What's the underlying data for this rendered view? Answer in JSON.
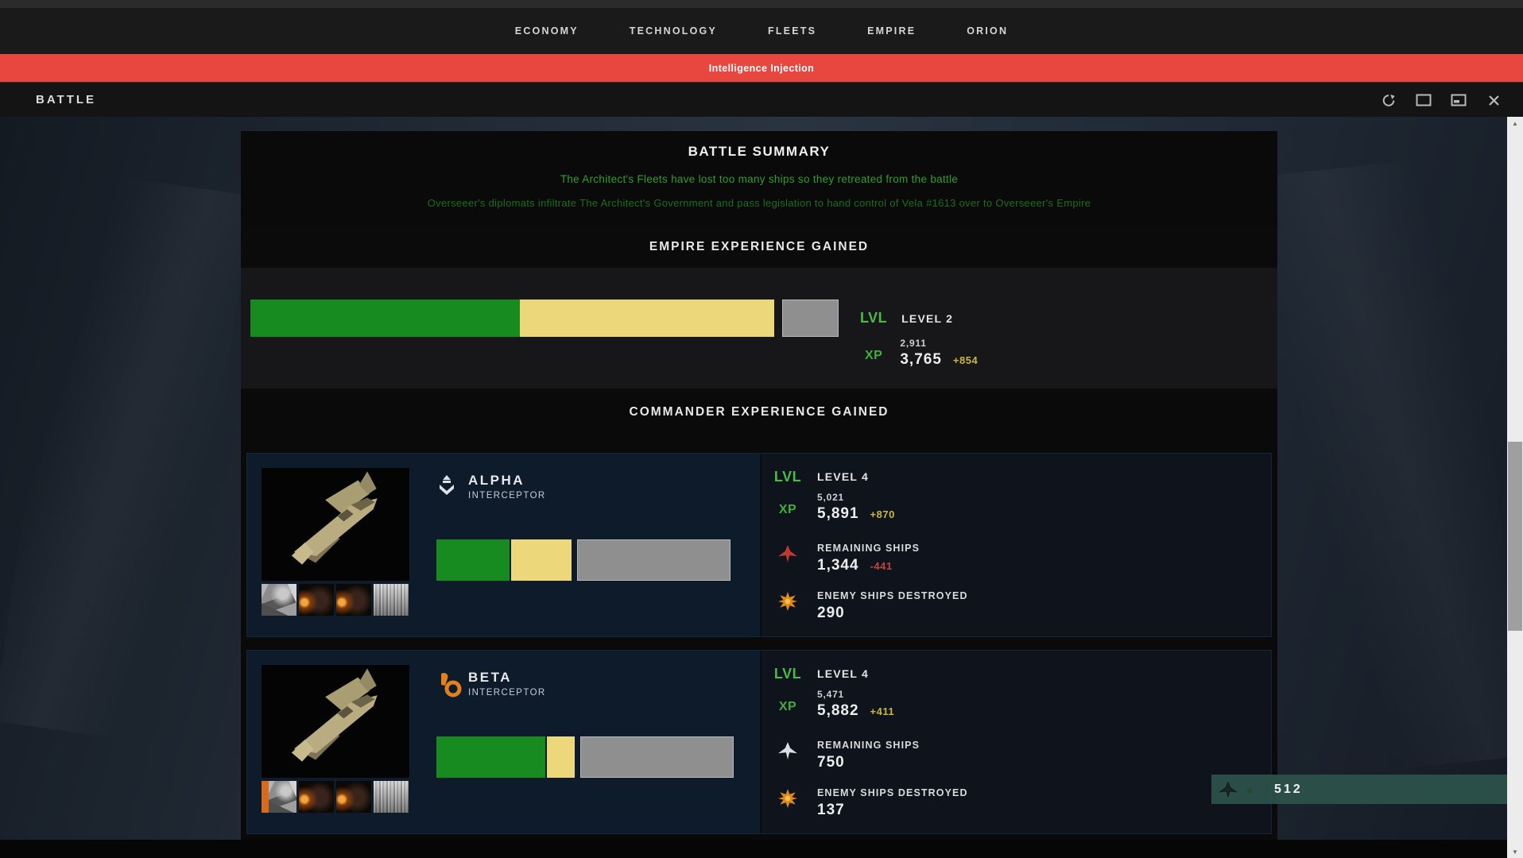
{
  "nav": {
    "items": [
      {
        "label": "ECONOMY"
      },
      {
        "label": "TECHNOLOGY"
      },
      {
        "label": "FLEETS"
      },
      {
        "label": "EMPIRE"
      },
      {
        "label": "ORION"
      }
    ]
  },
  "banner": {
    "text": "Intelligence Injection"
  },
  "window": {
    "title": "BATTLE"
  },
  "labels": {
    "lvl": "LVL",
    "xp": "XP",
    "remaining_ships": "REMAINING SHIPS",
    "enemy_destroyed": "ENEMY SHIPS DESTROYED"
  },
  "battle_summary": {
    "title": "BATTLE SUMMARY",
    "line1": "The Architect's Fleets have lost too many ships so they retreated from the battle",
    "line2": "Overseeer's diplomats infiltrate The Architect's Government and pass legislation to hand control of Vela #1613 over to Overseeer's Empire"
  },
  "empire": {
    "title": "EMPIRE EXPERIENCE GAINED",
    "level": "LEVEL 2",
    "xp_current": "2,911",
    "xp_next": "3,765",
    "xp_gain": "+854",
    "bar": {
      "green_pct": 45.5,
      "yellow_pct": 42.8,
      "gray_pct": 9.5
    }
  },
  "commander_section": {
    "title": "COMMANDER EXPERIENCE GAINED"
  },
  "commanders": [
    {
      "name": "ALPHA",
      "ship_class": "INTERCEPTOR",
      "level": "LEVEL 4",
      "xp_current": "5,021",
      "xp_next": "5,891",
      "xp_gain": "+870",
      "remaining_ships": "1,344",
      "remaining_delta": "-441",
      "enemy_destroyed": "290",
      "bar": {
        "green_pct": 24.5,
        "yellow_pct": 20.5,
        "gray_pct": 51.5
      }
    },
    {
      "name": "BETA",
      "ship_class": "INTERCEPTOR",
      "level": "LEVEL 4",
      "xp_current": "5,471",
      "xp_next": "5,882",
      "xp_gain": "+411",
      "remaining_ships": "750",
      "remaining_delta": "",
      "enemy_destroyed": "137",
      "bar": {
        "green_pct": 36.5,
        "yellow_pct": 9.5,
        "gray_pct": 51.5
      }
    }
  ],
  "tooltip": {
    "value": "512"
  },
  "colors": {
    "banner_red": "#e8473f",
    "xp_green": "#178a20",
    "xp_pending_yellow": "#ecd87a",
    "xp_remaining_gray": "#8f8f8f",
    "gain_yellow": "#c9b542",
    "loss_red": "#bf4541",
    "label_green": "#49bb49",
    "summary_green_bright": "#2f9e2f",
    "summary_green_dim": "#1d6e1d",
    "tooltip_teal": "#2c504a"
  }
}
